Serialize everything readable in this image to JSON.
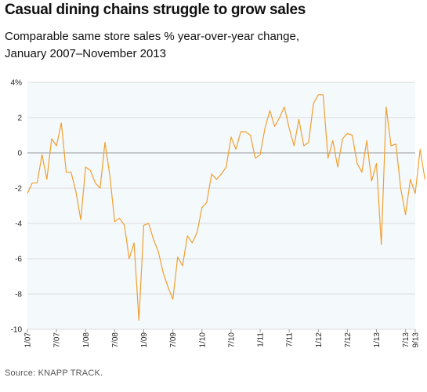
{
  "title": "Casual dining chains struggle to grow sales",
  "subtitle_lines": [
    "Comparable same store sales % year-over-year change,",
    "January 2007–November 2013"
  ],
  "source": "Source: KNAPP TRACK.",
  "chart_data": {
    "type": "line",
    "title": "Casual dining chains struggle to grow sales",
    "subtitle": "Comparable same store sales % year-over-year change, January 2007–November 2013",
    "xlabel": "",
    "ylabel": "",
    "ylim": [
      -10,
      4
    ],
    "y_ticks": [
      4,
      2,
      0,
      -2,
      -4,
      -6,
      -8,
      -10
    ],
    "y_tick_labels": [
      "4%",
      "2",
      "0",
      "-2",
      "-4",
      "-6",
      "-8",
      "-10"
    ],
    "x_tick_labels": [
      "1/07",
      "7/07",
      "1/08",
      "7/08",
      "1/09",
      "7/09",
      "1/10",
      "7/10",
      "1/11",
      "7/11",
      "1/12",
      "7/12",
      "1/13",
      "7/13",
      "9/13"
    ],
    "x_tick_months": [
      "2007-01",
      "2007-07",
      "2008-01",
      "2008-07",
      "2009-01",
      "2009-07",
      "2010-01",
      "2010-07",
      "2011-01",
      "2011-07",
      "2012-01",
      "2012-07",
      "2013-01",
      "2013-07",
      "2013-09"
    ],
    "grid": "horizontal",
    "line_color": "#f0a030",
    "series": [
      {
        "months": [
          "2007-01",
          "2007-02",
          "2007-03",
          "2007-04",
          "2007-05",
          "2007-06",
          "2007-07",
          "2007-08",
          "2007-09",
          "2007-10",
          "2007-11",
          "2007-12",
          "2008-01",
          "2008-02",
          "2008-03",
          "2008-04",
          "2008-05",
          "2008-06",
          "2008-07",
          "2008-08",
          "2008-09",
          "2008-10",
          "2008-11",
          "2008-12",
          "2009-01",
          "2009-02",
          "2009-03",
          "2009-04",
          "2009-05",
          "2009-06",
          "2009-07",
          "2009-08",
          "2009-09",
          "2009-10",
          "2009-11",
          "2009-12",
          "2010-01",
          "2010-02",
          "2010-03",
          "2010-04",
          "2010-05",
          "2010-06",
          "2010-07",
          "2010-08",
          "2010-09",
          "2010-10",
          "2010-11",
          "2010-12",
          "2011-01",
          "2011-02",
          "2011-03",
          "2011-04",
          "2011-05",
          "2011-06",
          "2011-07",
          "2011-08",
          "2011-09",
          "2011-10",
          "2011-11",
          "2011-12",
          "2012-01",
          "2012-02",
          "2012-03",
          "2012-04",
          "2012-05",
          "2012-06",
          "2012-07",
          "2012-08",
          "2012-09",
          "2012-10",
          "2012-11",
          "2012-12",
          "2013-01",
          "2013-02",
          "2013-03",
          "2013-04",
          "2013-05",
          "2013-06",
          "2013-07",
          "2013-08",
          "2013-09",
          "2013-10",
          "2013-11"
        ],
        "values": [
          -2.3,
          -1.7,
          -1.7,
          -0.1,
          -1.5,
          0.8,
          0.4,
          1.7,
          -1.1,
          -1.1,
          -2.2,
          -3.8,
          -0.8,
          -1.0,
          -1.7,
          -2.0,
          0.6,
          -1.3,
          -3.9,
          -3.7,
          -4.1,
          -6.0,
          -5.1,
          -9.5,
          -4.1,
          -4.0,
          -4.9,
          -5.6,
          -6.8,
          -7.6,
          -8.3,
          -5.9,
          -6.4,
          -4.7,
          -5.1,
          -4.5,
          -3.1,
          -2.8,
          -1.2,
          -1.5,
          -1.2,
          -0.8,
          0.9,
          0.2,
          1.2,
          1.2,
          1.0,
          -0.3,
          -0.1,
          1.4,
          2.4,
          1.5,
          2.0,
          2.6,
          1.4,
          0.4,
          1.9,
          0.4,
          0.6,
          2.8,
          3.3,
          3.3,
          -0.3,
          0.7,
          -0.8,
          0.8,
          1.1,
          1.0,
          -0.6,
          -1.1,
          0.7,
          -1.6,
          -0.6,
          -5.2,
          2.6,
          0.4,
          0.5,
          -2.0,
          -3.5,
          -1.5,
          -2.3,
          0.2,
          -1.5
        ]
      }
    ]
  }
}
